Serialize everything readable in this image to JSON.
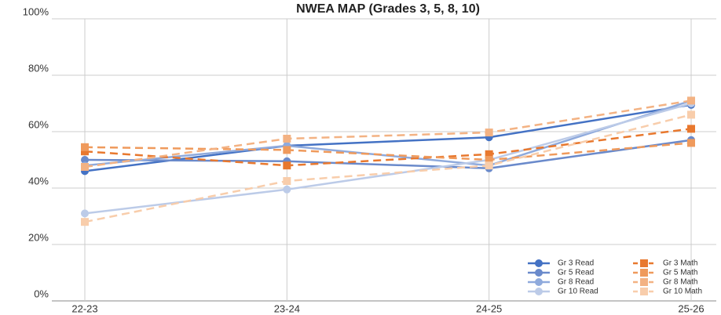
{
  "chart_data": {
    "type": "line",
    "title": "NWEA MAP (Grades 3, 5, 8, 10)",
    "categories": [
      "22-23",
      "23-24",
      "24-25",
      "25-26"
    ],
    "ylim": [
      0,
      100
    ],
    "yticks": [
      {
        "value": 0,
        "label": "0%"
      },
      {
        "value": 20,
        "label": "20%"
      },
      {
        "value": 40,
        "label": "40%"
      },
      {
        "value": 60,
        "label": "60%"
      },
      {
        "value": 80,
        "label": "80%"
      },
      {
        "value": 100,
        "label": "100%"
      }
    ],
    "grid": true,
    "legend": "bottom-right",
    "series": [
      {
        "name": "Gr 3 Read",
        "color": "#4472c4",
        "dashed": false,
        "marker": "circle",
        "values": [
          46,
          55,
          58,
          69.5
        ]
      },
      {
        "name": "Gr 5 Read",
        "color": "#6a8acb",
        "dashed": false,
        "marker": "circle",
        "values": [
          50,
          49.5,
          47,
          57
        ]
      },
      {
        "name": "Gr 8 Read",
        "color": "#8faadc",
        "dashed": false,
        "marker": "circle",
        "values": [
          48,
          55,
          48,
          71
        ]
      },
      {
        "name": "Gr 10 Read",
        "color": "#bccbe8",
        "dashed": false,
        "marker": "circle",
        "values": [
          31,
          39.5,
          50,
          70
        ]
      },
      {
        "name": "Gr 3 Math",
        "color": "#e8782e",
        "dashed": true,
        "marker": "square",
        "values": [
          53,
          48,
          52,
          61
        ]
      },
      {
        "name": "Gr 5 Math",
        "color": "#ef9a5c",
        "dashed": true,
        "marker": "square",
        "values": [
          54.5,
          53.5,
          50,
          56
        ]
      },
      {
        "name": "Gr 8 Math",
        "color": "#f3b283",
        "dashed": true,
        "marker": "square",
        "values": [
          47.5,
          57.5,
          59.7,
          71
        ]
      },
      {
        "name": "Gr 10 Math",
        "color": "#f8cdab",
        "dashed": true,
        "marker": "square",
        "values": [
          28,
          42.5,
          48,
          66
        ]
      }
    ]
  }
}
